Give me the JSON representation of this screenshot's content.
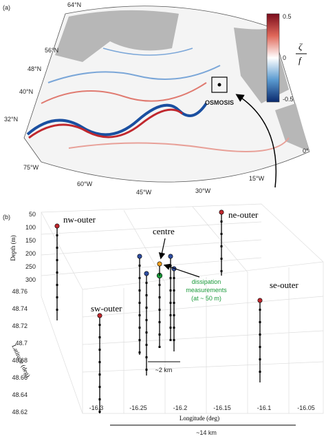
{
  "panel_a": {
    "label": "(a)",
    "lat_labels": [
      "64°N",
      "56°N",
      "48°N",
      "40°N",
      "32°N"
    ],
    "lon_labels": [
      "75°W",
      "60°W",
      "45°W",
      "30°W",
      "15°W",
      "0°"
    ],
    "site": "OSMOSIS",
    "colorbar": {
      "label_top": "ζ",
      "label_bottom": "f",
      "ticks": [
        "0.5",
        "0",
        "-0.5"
      ]
    }
  },
  "panel_b": {
    "label": "(b)",
    "depth_axis": {
      "title": "Depth (m)",
      "ticks": [
        "50",
        "100",
        "150",
        "200",
        "250",
        "300"
      ]
    },
    "latitude_axis": {
      "title": "Latitude (deg)",
      "ticks": [
        "48.76",
        "48.74",
        "48.72",
        "48.7",
        "48.68",
        "48.66",
        "48.64",
        "48.62"
      ]
    },
    "longitude_axis": {
      "title": "Longitude (deg)",
      "ticks": [
        "-16.3",
        "-16.25",
        "-16.2",
        "-16.15",
        "-16.1",
        "-16.05"
      ]
    },
    "moorings": [
      "nw-outer",
      "ne-outer",
      "centre",
      "sw-outer",
      "se-outer"
    ],
    "annotation": [
      "dissipation",
      "measurements",
      "(at ~ 50 m)"
    ],
    "scale_small": "~2 km",
    "scale_large": "~14 km"
  }
}
